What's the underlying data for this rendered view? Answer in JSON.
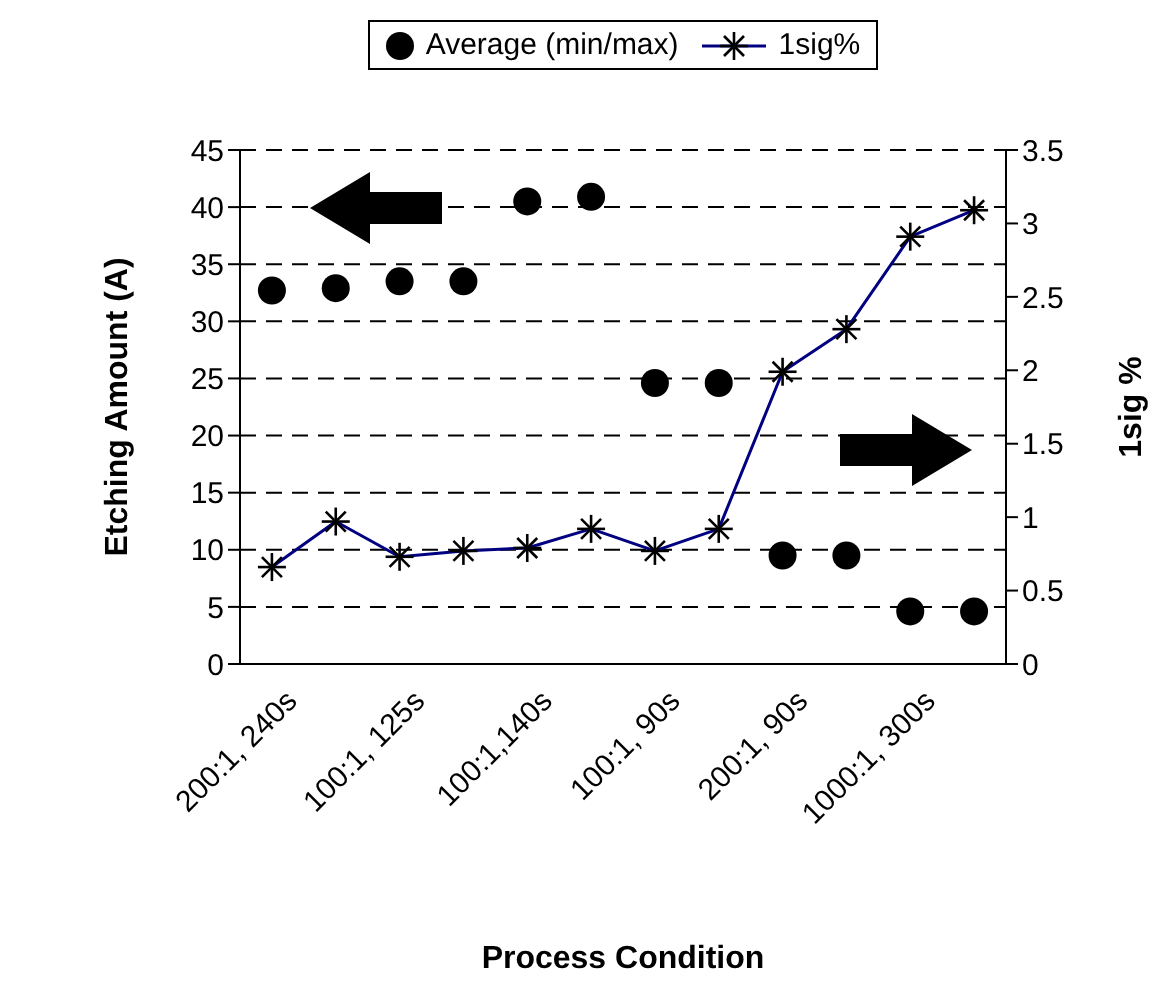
{
  "chart_data": {
    "type": "scatter",
    "xlabel": "Process Condition",
    "ylabel": "Etching Amount (A)",
    "y2label": "1sig %",
    "categories": [
      "200:1, 240s",
      null,
      "100:1, 125s",
      null,
      "100:1,140s",
      null,
      "100:1, 90s",
      null,
      "200:1, 90s",
      null,
      "1000:1, 300s",
      null
    ],
    "series": [
      {
        "name": "Average (min/max)",
        "marker": "circle",
        "color": "#000000",
        "values": [
          32.7,
          32.9,
          33.5,
          33.5,
          40.5,
          40.9,
          24.6,
          24.6,
          9.5,
          9.5,
          4.6,
          4.6
        ]
      },
      {
        "name": "1sig%",
        "type": "line",
        "axis": "y2",
        "marker": "cross",
        "color": "#000080",
        "values": [
          0.66,
          0.97,
          0.73,
          0.77,
          0.79,
          0.92,
          0.77,
          0.92,
          1.99,
          2.28,
          2.91,
          3.09
        ]
      }
    ],
    "ylim": [
      0,
      45
    ],
    "yticks": [
      0,
      5,
      10,
      15,
      20,
      25,
      30,
      35,
      40,
      45
    ],
    "y2lim": [
      0,
      3.5
    ],
    "y2ticks": [
      0,
      0.5,
      1,
      1.5,
      2,
      2.5,
      3,
      3.5
    ],
    "grid": "y",
    "legend": "top"
  }
}
